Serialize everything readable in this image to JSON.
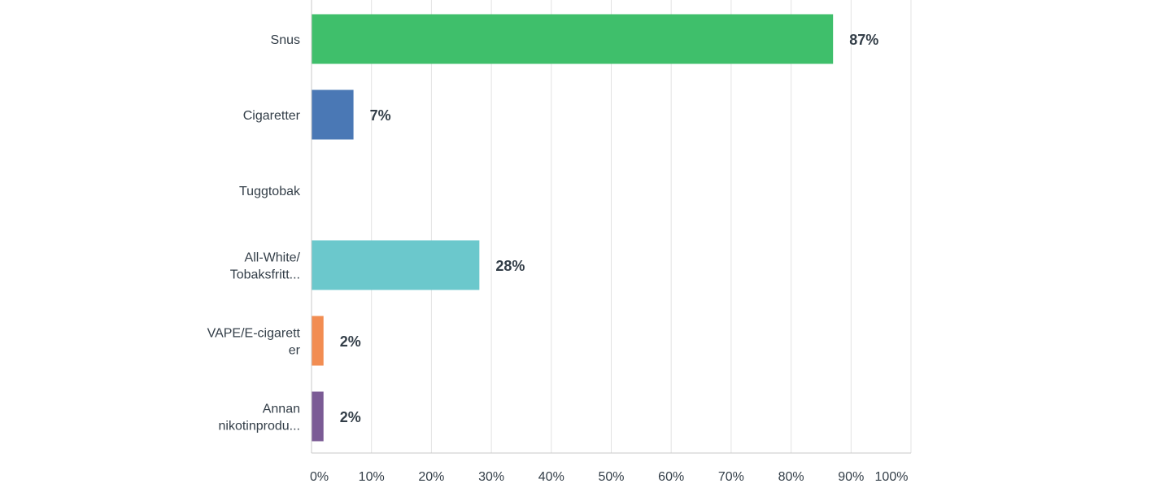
{
  "chart_data": {
    "type": "bar",
    "orientation": "horizontal",
    "categories": [
      [
        "Snus"
      ],
      [
        "Cigaretter"
      ],
      [
        "Tuggtobak"
      ],
      [
        "All-White/",
        "Tobaksfritt..."
      ],
      [
        "VAPE/E-cigarett",
        "er"
      ],
      [
        "Annan",
        "nikotinprodu..."
      ]
    ],
    "values": [
      87,
      7,
      0,
      28,
      2,
      2
    ],
    "data_labels": [
      "87%",
      "7%",
      "",
      "28%",
      "2%",
      "2%"
    ],
    "colors": [
      "#3fbf6b",
      "#4a78b5",
      "#e0e0e0",
      "#6bc8cc",
      "#f28d52",
      "#7b5b95"
    ],
    "xlim": [
      0,
      100
    ],
    "xticks": [
      "0%",
      "10%",
      "20%",
      "30%",
      "40%",
      "50%",
      "60%",
      "70%",
      "80%",
      "90%",
      "100%"
    ],
    "grid": true
  }
}
